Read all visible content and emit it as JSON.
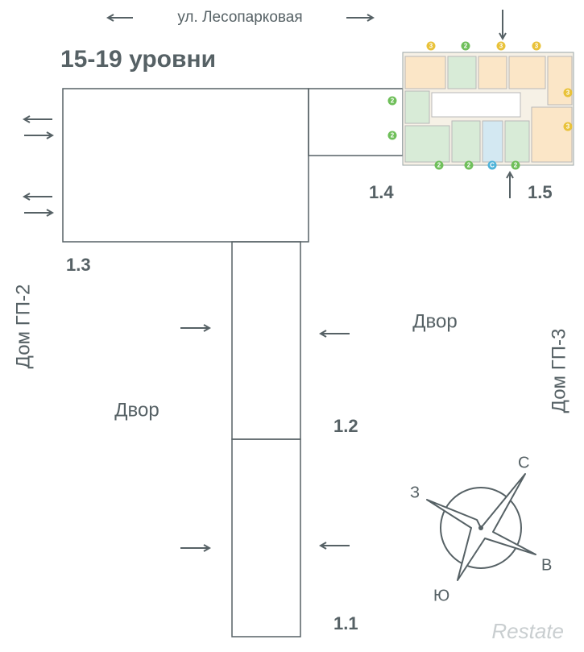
{
  "street": "ул. Лесопарковая",
  "title": "15-19 уровни",
  "sections": [
    "1.1",
    "1.2",
    "1.3",
    "1.4",
    "1.5"
  ],
  "yards": [
    "Двор",
    "Двор"
  ],
  "neighbors": [
    "Дом ГП-2",
    "Дом ГП-3"
  ],
  "compass": {
    "north": "С",
    "west": "З",
    "east": "В",
    "south": "Ю"
  },
  "plan_badges": [
    "3",
    "2",
    "3",
    "3",
    "2",
    "2",
    "3",
    "3",
    "2",
    "2",
    "С",
    "2"
  ],
  "watermark": "Restate"
}
